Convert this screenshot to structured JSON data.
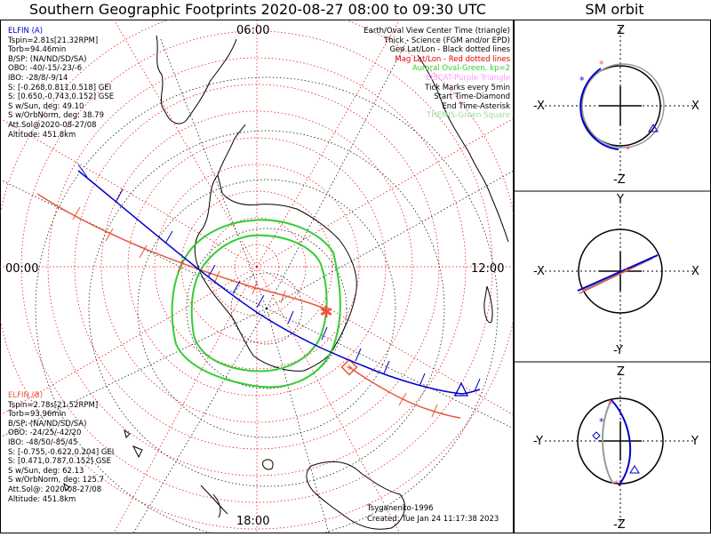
{
  "title": "Southern Geographic Footprints 2020-08-27 08:00 to 09:30 UTC",
  "side_title": "SM orbit",
  "map": {
    "time_labels": {
      "top": "06:00",
      "left": "00:00",
      "right": "12:00",
      "bottom": "18:00"
    }
  },
  "elfin_a": {
    "color": "#0000cc",
    "lines": [
      "ELFIN (A)",
      "Tspin=2.81s[21.32RPM]",
      "Torb=94.46min",
      "B/SP: (NA/ND/SD/SA)",
      "OBO: -40/-15/-23/-6",
      "IBO: -28/8/-9/14",
      "S: [-0.268,0.811,0.518] GEI",
      "S: [0.650,-0.743,0.152] GSE",
      "S w/Sun, deg: 49.10",
      "S w/OrbNorm, deg: 38.79",
      "Att.Sol@2020-08-27/08",
      "Altitude: 451.8km"
    ]
  },
  "elfin_b": {
    "color": "#e8573a",
    "lines": [
      "ELFIN (B)",
      "Tspin=2.78s[21.52RPM]",
      "Torb=93.96min",
      "B/SP: (NA/ND/SD/SA)",
      "OBO: -24/25/-42/20",
      "IBO: -48/50/-85/45",
      "S: [-0.755,-0.622,0.204] GEI",
      "S: [0.471,0.787,0.152] GSE",
      "S w/Sun, deg: 62.13",
      "S w/OrbNorm, deg: 125.7",
      "Att.Sol@: 2020-08-27/08",
      "Altitude: 451.8km"
    ]
  },
  "legend": [
    {
      "text": "Earth/Oval View Center Time (triangle)",
      "color": "#000000"
    },
    {
      "text": "Thick - Science (FGM and/or EPD)",
      "color": "#000000"
    },
    {
      "text": "Geo Lat/Lon - Black dotted lines",
      "color": "#000000"
    },
    {
      "text": "Mag Lat/Lon - Red dotted lines",
      "color": "#e60000"
    },
    {
      "text": "Auroral Oval-Green, kp=2",
      "color": "#33cc33"
    },
    {
      "text": "EISCAT-Purple Triangle",
      "color": "#ff99ff"
    },
    {
      "text": "Tick Marks every 5min",
      "color": "#000000"
    },
    {
      "text": "Start Time-Diamond",
      "color": "#000000"
    },
    {
      "text": "End Time-Asterisk",
      "color": "#000000"
    },
    {
      "text": "THEMIS-Green Square",
      "color": "#99dd99"
    }
  ],
  "model_note": "Tsyganenko-1996",
  "created_note": "Created: Tue Jan 24 11:17:38 2023",
  "orbit_views": [
    {
      "top": "Z",
      "bottom": "-Z",
      "left": "-X",
      "right": "X"
    },
    {
      "top": "Y",
      "bottom": "-Y",
      "left": "-X",
      "right": "X"
    },
    {
      "top": "Z",
      "bottom": "-Z",
      "left": "-Y",
      "right": "Y"
    }
  ],
  "colors": {
    "elfin_a": "#0000cc",
    "elfin_b": "#e8573a",
    "auroral_oval": "#33cc33",
    "geo_grid": "#000000",
    "mag_grid": "#e60000"
  }
}
